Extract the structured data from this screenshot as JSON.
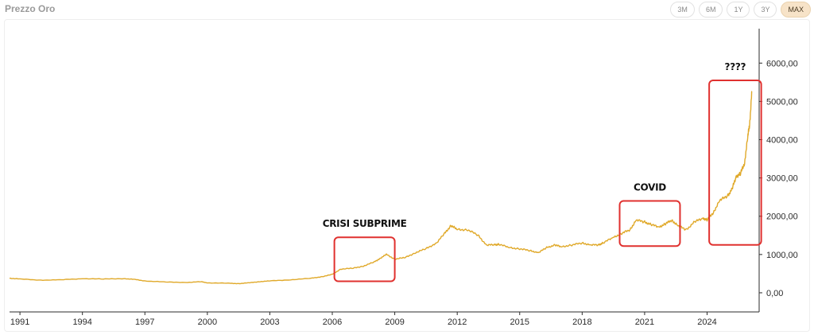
{
  "header": {
    "title": "Prezzo Oro",
    "ranges": [
      {
        "label": "3M",
        "active": false
      },
      {
        "label": "6M",
        "active": false
      },
      {
        "label": "1Y",
        "active": false
      },
      {
        "label": "3Y",
        "active": false
      },
      {
        "label": "MAX",
        "active": true
      }
    ]
  },
  "chart_data": {
    "type": "line",
    "series_color": "#e0a92a",
    "annotation_color": "#e0312f",
    "xlim": [
      1990.5,
      2026.5
    ],
    "ylim": [
      -500,
      6900
    ],
    "x_ticks": [
      {
        "value": 1991,
        "label": "1991"
      },
      {
        "value": 1994,
        "label": "1994"
      },
      {
        "value": 1997,
        "label": "1997"
      },
      {
        "value": 2000,
        "label": "2000"
      },
      {
        "value": 2003,
        "label": "2003"
      },
      {
        "value": 2006,
        "label": "2006"
      },
      {
        "value": 2009,
        "label": "2009"
      },
      {
        "value": 2012,
        "label": "2012"
      },
      {
        "value": 2015,
        "label": "2015"
      },
      {
        "value": 2018,
        "label": "2018"
      },
      {
        "value": 2021,
        "label": "2021"
      },
      {
        "value": 2024,
        "label": "2024"
      }
    ],
    "y_ticks": [
      {
        "value": 0,
        "label": "0,00"
      },
      {
        "value": 1000,
        "label": "1000,00"
      },
      {
        "value": 2000,
        "label": "2000,00"
      },
      {
        "value": 3000,
        "label": "3000,00"
      },
      {
        "value": 4000,
        "label": "4000,00"
      },
      {
        "value": 5000,
        "label": "5000,00"
      },
      {
        "value": 6000,
        "label": "6000,00"
      }
    ],
    "series": [
      {
        "x": [
          1990.5,
          1991.0,
          1992.0,
          1993.0,
          1994.0,
          1995.0,
          1996.0,
          1996.5,
          1997.0,
          1998.0,
          1999.0,
          1999.7,
          2000.0,
          2001.0,
          2001.5,
          2002.0,
          2002.5,
          2003.0,
          2004.0,
          2005.0,
          2005.5,
          2006.0,
          2006.4,
          2007.0,
          2007.5,
          2008.0,
          2008.3,
          2008.6,
          2009.0,
          2009.5,
          2010.0,
          2010.5,
          2011.0,
          2011.4,
          2011.7,
          2012.0,
          2012.5,
          2013.0,
          2013.4,
          2013.8,
          2014.0,
          2014.5,
          2015.0,
          2015.5,
          2015.9,
          2016.3,
          2016.7,
          2017.0,
          2017.5,
          2018.0,
          2018.4,
          2018.8,
          2019.0,
          2019.5,
          2019.9,
          2020.3,
          2020.6,
          2021.0,
          2021.3,
          2021.7,
          2022.0,
          2022.3,
          2022.6,
          2023.0,
          2023.4,
          2023.8,
          2024.0,
          2024.3,
          2024.6,
          2025.0,
          2025.2,
          2025.4,
          2025.6,
          2025.8,
          2025.95,
          2026.05,
          2026.15
        ],
        "y": [
          380,
          360,
          330,
          340,
          370,
          360,
          370,
          350,
          310,
          280,
          270,
          290,
          260,
          250,
          240,
          260,
          290,
          310,
          340,
          380,
          420,
          480,
          620,
          640,
          700,
          800,
          900,
          1000,
          880,
          920,
          1050,
          1150,
          1300,
          1550,
          1760,
          1650,
          1650,
          1500,
          1250,
          1250,
          1270,
          1180,
          1150,
          1100,
          1050,
          1180,
          1250,
          1200,
          1250,
          1300,
          1250,
          1250,
          1300,
          1450,
          1550,
          1650,
          1900,
          1850,
          1780,
          1720,
          1800,
          1900,
          1750,
          1650,
          1850,
          1950,
          1900,
          2100,
          2400,
          2550,
          2700,
          3050,
          3100,
          3400,
          4050,
          4450,
          5250
        ]
      }
    ],
    "annotations": [
      {
        "label": "CRISI SUBPRIME",
        "x0": 2006.1,
        "x1": 2009.0,
        "y0": 300,
        "y1": 1450
      },
      {
        "label": "COVID",
        "x0": 2019.8,
        "x1": 2022.7,
        "y0": 1220,
        "y1": 2400
      },
      {
        "label": "????",
        "x0": 2024.1,
        "x1": 2026.6,
        "y0": 1250,
        "y1": 5550
      }
    ]
  }
}
